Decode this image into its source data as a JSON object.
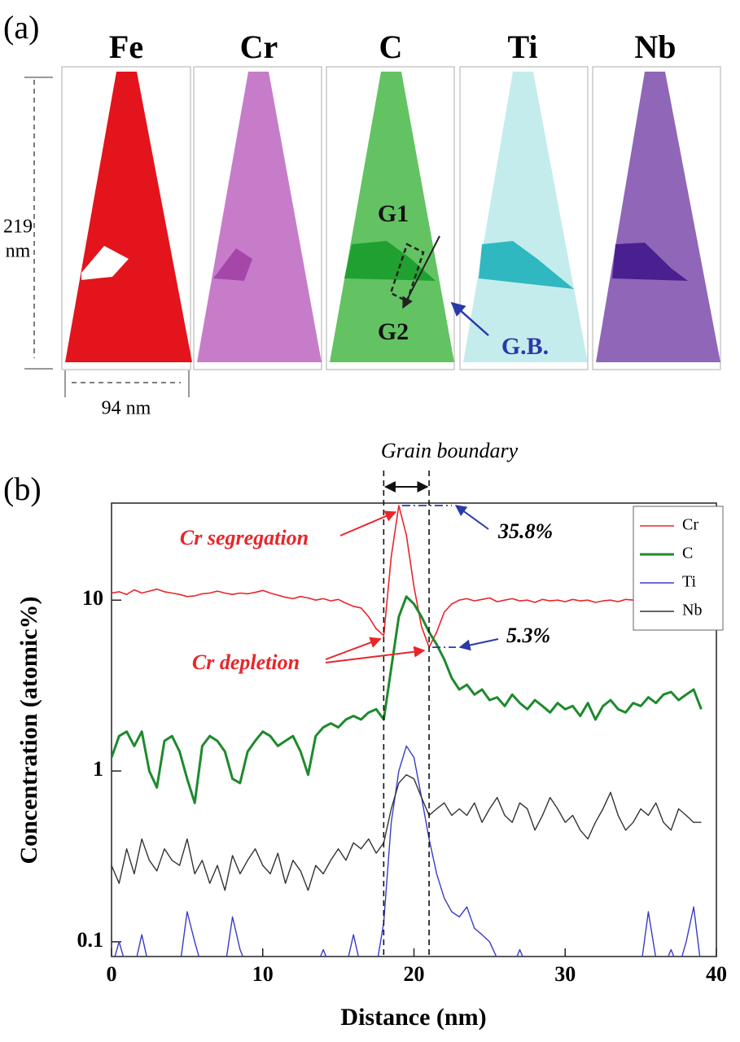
{
  "panel_a": {
    "label": "(a)",
    "elements": [
      "Fe",
      "Cr",
      "C",
      "Ti",
      "Nb"
    ],
    "height_value": "219",
    "height_unit": "nm",
    "width": "94 nm",
    "grain_1": "G1",
    "grain_2": "G2",
    "boundary": "G.B."
  },
  "chart_data": {
    "type": "line",
    "panel_label": "(b)",
    "title": "Grain boundary",
    "xlabel": "Distance (nm)",
    "ylabel": "Concentration (atomic%)",
    "xlim": [
      0,
      40
    ],
    "xticks": [
      0,
      10,
      20,
      30,
      40
    ],
    "ylim": [
      0.082,
      37
    ],
    "yticks": [
      0.1,
      1,
      10
    ],
    "log_y": true,
    "legend": "upper right",
    "boundary_x": [
      18,
      21
    ],
    "annotations": {
      "segregation": "Cr segregation",
      "peak": "35.8%",
      "depletion": "Cr depletion",
      "minimum": "5.3%"
    },
    "x": [
      0,
      0.5,
      1,
      1.5,
      2,
      2.5,
      3,
      3.5,
      4,
      4.5,
      5,
      5.5,
      6,
      6.5,
      7,
      7.5,
      8,
      8.5,
      9,
      9.5,
      10,
      10.5,
      11,
      11.5,
      12,
      12.5,
      13,
      13.5,
      14,
      14.5,
      15,
      15.5,
      16,
      16.5,
      17,
      17.5,
      18,
      18.5,
      19,
      19.5,
      20,
      20.5,
      21,
      21.5,
      22,
      22.5,
      23,
      23.5,
      24,
      24.5,
      25,
      25.5,
      26,
      26.5,
      27,
      27.5,
      28,
      28.5,
      29,
      29.5,
      30,
      30.5,
      31,
      31.5,
      32,
      32.5,
      33,
      33.5,
      34,
      34.5,
      35,
      35.5,
      36,
      36.5,
      37,
      37.5,
      38,
      38.5,
      39
    ],
    "series": [
      {
        "name": "Cr",
        "color": "#e8262a",
        "width": 1.6,
        "values": [
          11,
          11.2,
          10.8,
          11.5,
          11,
          11.3,
          11.6,
          11.2,
          11,
          10.8,
          10.5,
          10.6,
          10.9,
          11,
          11.3,
          11,
          10.8,
          11,
          10.9,
          11.1,
          11.4,
          11,
          10.7,
          10.4,
          10.2,
          10.5,
          10.3,
          10,
          10.2,
          9.9,
          10.1,
          9.6,
          9.2,
          9.0,
          8.0,
          6.8,
          6.2,
          18,
          35.8,
          24,
          12,
          7,
          5.3,
          6.5,
          8.5,
          9.5,
          10,
          10.2,
          9.9,
          10.1,
          10.3,
          9.8,
          10,
          10.2,
          9.9,
          10,
          9.7,
          10.1,
          9.9,
          10,
          9.8,
          10.1,
          9.9,
          10,
          9.7,
          9.9,
          10,
          9.8,
          10.1,
          10,
          null,
          null,
          null,
          null,
          null,
          null,
          null,
          null,
          null
        ]
      },
      {
        "name": "C",
        "color": "#1e8a2e",
        "width": 3,
        "values": [
          1.2,
          1.6,
          1.7,
          1.4,
          1.7,
          1.0,
          0.8,
          1.5,
          1.6,
          1.3,
          0.9,
          0.65,
          1.4,
          1.6,
          1.5,
          1.3,
          0.9,
          0.85,
          1.3,
          1.5,
          1.7,
          1.6,
          1.4,
          1.5,
          1.6,
          1.3,
          0.95,
          1.6,
          1.8,
          1.9,
          1.8,
          2.0,
          2.1,
          2.0,
          2.2,
          2.3,
          2.0,
          4,
          8,
          10.5,
          9.5,
          8,
          6.5,
          5.5,
          4.5,
          3.5,
          3.0,
          3.2,
          2.8,
          3.0,
          2.6,
          2.7,
          2.4,
          2.8,
          2.5,
          2.3,
          2.6,
          2.4,
          2.2,
          2.5,
          2.3,
          2.4,
          2.1,
          2.5,
          2.0,
          2.4,
          2.6,
          2.3,
          2.2,
          2.5,
          2.4,
          2.7,
          2.5,
          2.8,
          2.9,
          2.6,
          2.8,
          3.0,
          2.3
        ]
      },
      {
        "name": "Ti",
        "color": "#3a3ac8",
        "width": 1.4,
        "values": [
          0.07,
          0.1,
          0.07,
          0.07,
          0.11,
          0.07,
          0.07,
          0.07,
          0.07,
          0.07,
          0.15,
          0.1,
          0.07,
          0.07,
          0.07,
          0.07,
          0.14,
          0.09,
          0.07,
          0.07,
          0.07,
          0.07,
          0.07,
          0.07,
          0.07,
          0.07,
          0.07,
          0.07,
          0.09,
          0.07,
          0.07,
          0.07,
          0.11,
          0.07,
          0.07,
          0.07,
          0.13,
          0.5,
          1.0,
          1.4,
          1.2,
          0.7,
          0.4,
          0.25,
          0.18,
          0.15,
          0.14,
          0.16,
          0.12,
          0.11,
          0.1,
          0.08,
          0.07,
          0.07,
          0.09,
          0.07,
          0.07,
          0.07,
          0.07,
          0.07,
          0.07,
          0.07,
          0.07,
          0.07,
          0.07,
          0.07,
          0.07,
          0.07,
          0.07,
          0.07,
          0.07,
          0.15,
          0.08,
          0.07,
          0.09,
          0.07,
          0.1,
          0.16,
          0.07
        ]
      },
      {
        "name": "Nb",
        "color": "#333333",
        "width": 1.4,
        "values": [
          0.28,
          0.22,
          0.35,
          0.25,
          0.4,
          0.3,
          0.26,
          0.35,
          0.3,
          0.28,
          0.4,
          0.25,
          0.3,
          0.22,
          0.28,
          0.2,
          0.32,
          0.25,
          0.3,
          0.35,
          0.28,
          0.25,
          0.33,
          0.22,
          0.3,
          0.26,
          0.2,
          0.28,
          0.25,
          0.3,
          0.35,
          0.3,
          0.38,
          0.35,
          0.4,
          0.33,
          0.38,
          0.6,
          0.85,
          0.95,
          0.9,
          0.7,
          0.55,
          0.6,
          0.65,
          0.55,
          0.6,
          0.55,
          0.65,
          0.5,
          0.6,
          0.7,
          0.55,
          0.5,
          0.65,
          0.6,
          0.45,
          0.55,
          0.7,
          0.6,
          0.5,
          0.55,
          0.45,
          0.4,
          0.5,
          0.6,
          0.75,
          0.55,
          0.45,
          0.5,
          0.6,
          0.55,
          0.65,
          0.5,
          0.45,
          0.6,
          0.55,
          0.5,
          0.5
        ]
      }
    ]
  }
}
